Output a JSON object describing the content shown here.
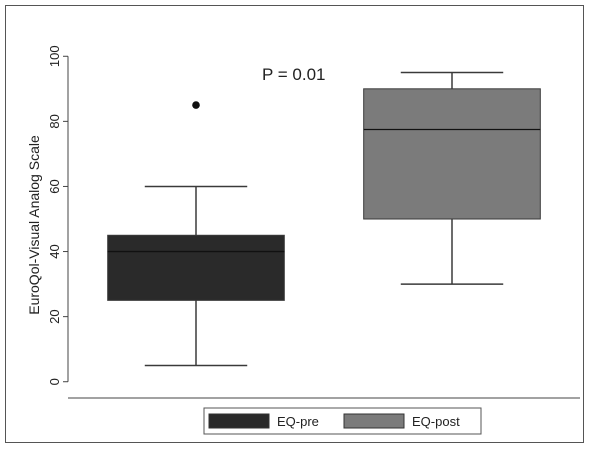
{
  "chart_data": {
    "type": "box",
    "ylabel": "EuroQol-Visual Analog Scale",
    "ylim": [
      -5,
      105
    ],
    "yticks": [
      0,
      20,
      40,
      60,
      80,
      100
    ],
    "grid": false,
    "annotation": "P = 0.01",
    "legend_position": "bottom",
    "series": [
      {
        "name": "EQ-pre",
        "color": "#2a2a2a",
        "whisker_low": 5,
        "q1": 25,
        "median": 40,
        "q3": 45,
        "whisker_high": 60,
        "outliers": [
          85
        ]
      },
      {
        "name": "EQ-post",
        "color": "#7b7b7b",
        "whisker_low": 30,
        "q1": 50,
        "median": 77.5,
        "q3": 90,
        "whisker_high": 95,
        "outliers": []
      }
    ]
  }
}
